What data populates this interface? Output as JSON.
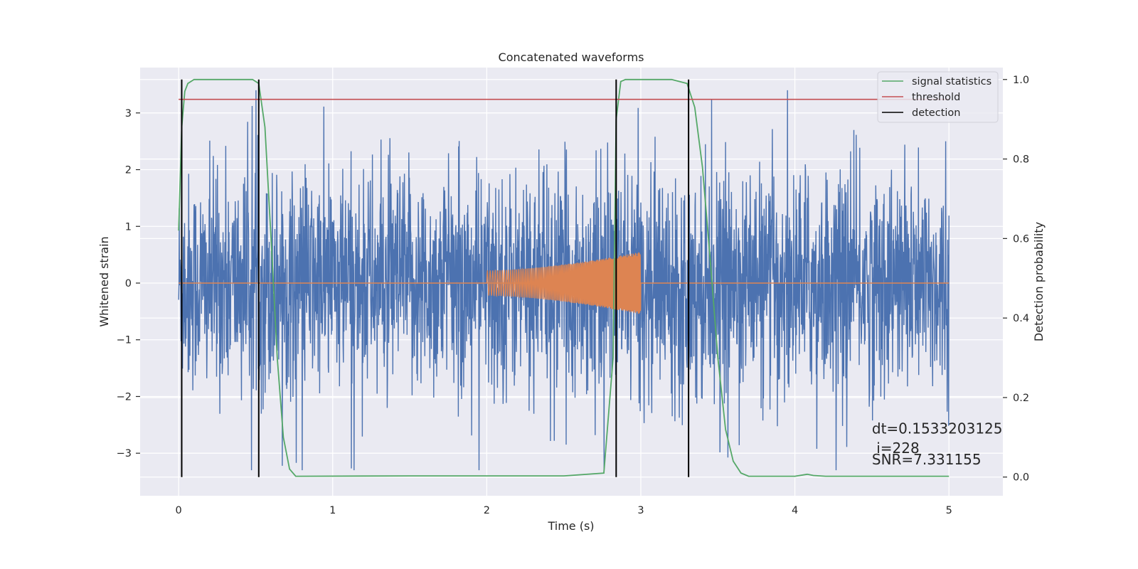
{
  "chart_data": {
    "type": "line",
    "title": "Concatenated waveforms",
    "xlabel": "Time (s)",
    "ylabel_left": "Whitened strain",
    "ylabel_right": "Detection probability",
    "xlim": [
      -0.25,
      5.35
    ],
    "ylim_left": [
      -3.75,
      3.8
    ],
    "ylim_right": [
      -0.047,
      1.03
    ],
    "x_ticks": [
      0,
      1,
      2,
      3,
      4,
      5
    ],
    "x_tick_labels": [
      "0",
      "1",
      "2",
      "3",
      "4",
      "5"
    ],
    "y_ticks_left": [
      3,
      2,
      1,
      0,
      -1,
      -2,
      -3
    ],
    "y_tick_labels_left": [
      "3",
      "2",
      "1",
      "0",
      "−1",
      "−2",
      "−3"
    ],
    "y_ticks_right": [
      1.0,
      0.8,
      0.6,
      0.4,
      0.2,
      0.0
    ],
    "y_tick_labels_right": [
      "1.0",
      "0.8",
      "0.6",
      "0.4",
      "0.2",
      "0.0"
    ],
    "grid": true,
    "legend_position": "top-right",
    "series": [
      {
        "name": "",
        "axis": "left",
        "color": "#4c72b0",
        "kind": "noise",
        "x_range": [
          0,
          5
        ],
        "typical_range": [
          -2.6,
          2.8
        ]
      },
      {
        "name": "",
        "axis": "left",
        "color": "#dd8452",
        "kind": "chirp",
        "x_range": [
          2.0,
          3.0
        ],
        "amplitude_start": 0.22,
        "amplitude_end": 0.55,
        "flat_zero_range": [
          0,
          5
        ]
      },
      {
        "name": "signal statistics",
        "axis": "right",
        "color": "#55a868",
        "x": [
          0.0,
          0.02,
          0.04,
          0.06,
          0.1,
          0.48,
          0.52,
          0.56,
          0.6,
          0.64,
          0.68,
          0.72,
          0.76,
          1.5,
          2.5,
          2.76,
          2.82,
          2.84,
          2.87,
          2.9,
          3.2,
          3.3,
          3.35,
          3.4,
          3.45,
          3.5,
          3.55,
          3.6,
          3.65,
          3.7,
          4.0,
          4.08,
          4.12,
          4.2,
          5.0
        ],
        "y": [
          0.62,
          0.88,
          0.97,
          0.99,
          1.0,
          1.0,
          0.99,
          0.88,
          0.6,
          0.3,
          0.1,
          0.02,
          0.002,
          0.003,
          0.003,
          0.01,
          0.3,
          0.9,
          0.995,
          1.0,
          1.0,
          0.99,
          0.93,
          0.78,
          0.55,
          0.3,
          0.12,
          0.04,
          0.01,
          0.002,
          0.002,
          0.007,
          0.004,
          0.002,
          0.002
        ]
      },
      {
        "name": "threshold",
        "axis": "right",
        "color": "#c44e52",
        "x": [
          0,
          5
        ],
        "y": [
          0.95,
          0.95
        ]
      },
      {
        "name": "detection",
        "axis": "right",
        "color": "#000000",
        "x": [
          0.02,
          0.52,
          2.84,
          3.31
        ],
        "y_range": [
          0.0,
          1.0
        ]
      }
    ],
    "annotations": [
      {
        "text": "dt=0.1533203125",
        "x": 4.5,
        "y": -2.65
      },
      {
        "text": " i=228",
        "x": 4.5,
        "y": -3.0
      },
      {
        "text": "SNR=7.331155",
        "x": 4.5,
        "y": -3.2
      }
    ]
  },
  "colors": {
    "axes_background": "#eaeaf2",
    "grid": "#ffffff",
    "noise": "#4c72b0",
    "chirp": "#dd8452",
    "signal_statistics": "#55a868",
    "threshold": "#c44e52",
    "detection": "#000000"
  }
}
